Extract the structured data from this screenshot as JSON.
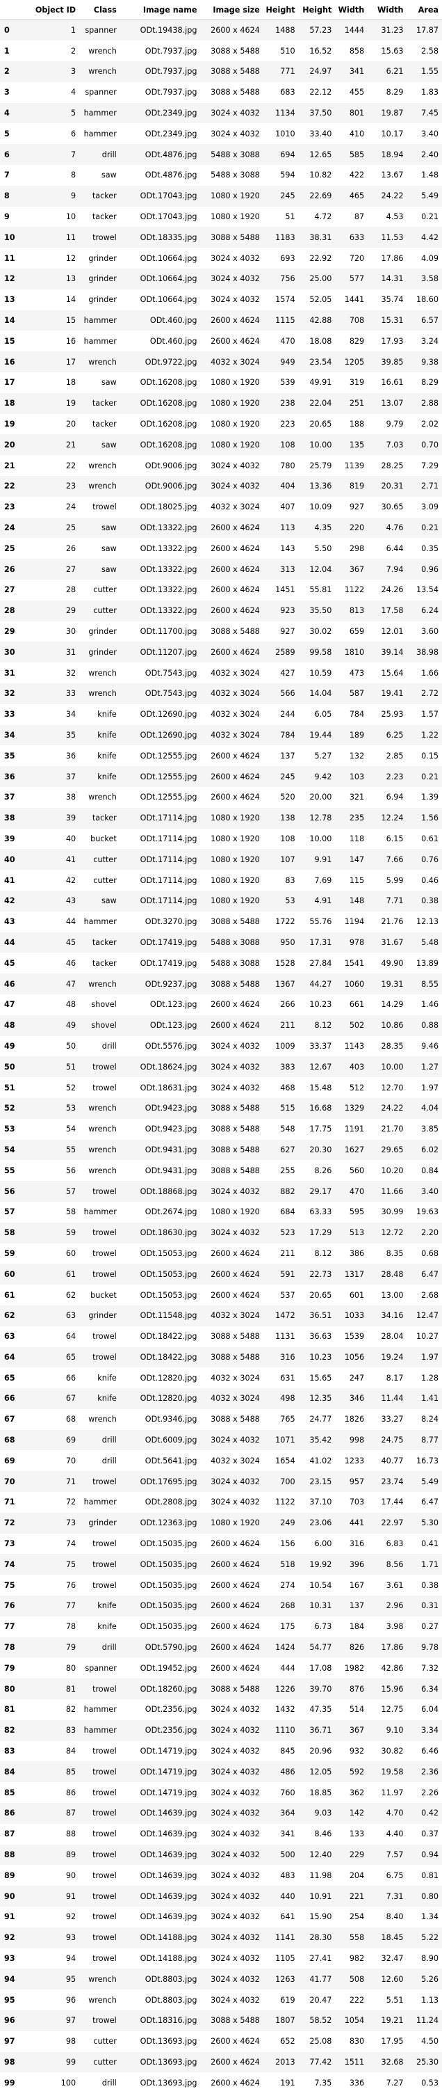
{
  "table": {
    "headers": [
      "",
      "Object ID",
      "Class",
      "Image name",
      "Image size",
      "Height",
      "Height",
      "Width",
      "Width",
      "Area"
    ],
    "rows": [
      [
        "0",
        "1",
        "spanner",
        "ODt.19438.jpg",
        "2600 x 4624",
        "1488",
        "57.23",
        "1444",
        "31.23",
        "17.87"
      ],
      [
        "1",
        "2",
        "wrench",
        "ODt.7937.jpg",
        "3088 x 5488",
        "510",
        "16.52",
        "858",
        "15.63",
        "2.58"
      ],
      [
        "2",
        "3",
        "wrench",
        "ODt.7937.jpg",
        "3088 x 5488",
        "771",
        "24.97",
        "341",
        "6.21",
        "1.55"
      ],
      [
        "3",
        "4",
        "spanner",
        "ODt.7937.jpg",
        "3088 x 5488",
        "683",
        "22.12",
        "455",
        "8.29",
        "1.83"
      ],
      [
        "4",
        "5",
        "hammer",
        "ODt.2349.jpg",
        "3024 x 4032",
        "1134",
        "37.50",
        "801",
        "19.87",
        "7.45"
      ],
      [
        "5",
        "6",
        "hammer",
        "ODt.2349.jpg",
        "3024 x 4032",
        "1010",
        "33.40",
        "410",
        "10.17",
        "3.40"
      ],
      [
        "6",
        "7",
        "drill",
        "ODt.4876.jpg",
        "5488 x 3088",
        "694",
        "12.65",
        "585",
        "18.94",
        "2.40"
      ],
      [
        "7",
        "8",
        "saw",
        "ODt.4876.jpg",
        "5488 x 3088",
        "594",
        "10.82",
        "422",
        "13.67",
        "1.48"
      ],
      [
        "8",
        "9",
        "tacker",
        "ODt.17043.jpg",
        "1080 x 1920",
        "245",
        "22.69",
        "465",
        "24.22",
        "5.49"
      ],
      [
        "9",
        "10",
        "tacker",
        "ODt.17043.jpg",
        "1080 x 1920",
        "51",
        "4.72",
        "87",
        "4.53",
        "0.21"
      ],
      [
        "10",
        "11",
        "trowel",
        "ODt.18335.jpg",
        "3088 x 5488",
        "1183",
        "38.31",
        "633",
        "11.53",
        "4.42"
      ],
      [
        "11",
        "12",
        "grinder",
        "ODt.10664.jpg",
        "3024 x 4032",
        "693",
        "22.92",
        "720",
        "17.86",
        "4.09"
      ],
      [
        "12",
        "13",
        "grinder",
        "ODt.10664.jpg",
        "3024 x 4032",
        "756",
        "25.00",
        "577",
        "14.31",
        "3.58"
      ],
      [
        "13",
        "14",
        "grinder",
        "ODt.10664.jpg",
        "3024 x 4032",
        "1574",
        "52.05",
        "1441",
        "35.74",
        "18.60"
      ],
      [
        "14",
        "15",
        "hammer",
        "ODt.460.jpg",
        "2600 x 4624",
        "1115",
        "42.88",
        "708",
        "15.31",
        "6.57"
      ],
      [
        "15",
        "16",
        "hammer",
        "ODt.460.jpg",
        "2600 x 4624",
        "470",
        "18.08",
        "829",
        "17.93",
        "3.24"
      ],
      [
        "16",
        "17",
        "wrench",
        "ODt.9722.jpg",
        "4032 x 3024",
        "949",
        "23.54",
        "1205",
        "39.85",
        "9.38"
      ],
      [
        "17",
        "18",
        "saw",
        "ODt.16208.jpg",
        "1080 x 1920",
        "539",
        "49.91",
        "319",
        "16.61",
        "8.29"
      ],
      [
        "18",
        "19",
        "tacker",
        "ODt.16208.jpg",
        "1080 x 1920",
        "238",
        "22.04",
        "251",
        "13.07",
        "2.88"
      ],
      [
        "19",
        "20",
        "tacker",
        "ODt.16208.jpg",
        "1080 x 1920",
        "223",
        "20.65",
        "188",
        "9.79",
        "2.02"
      ],
      [
        "20",
        "21",
        "saw",
        "ODt.16208.jpg",
        "1080 x 1920",
        "108",
        "10.00",
        "135",
        "7.03",
        "0.70"
      ],
      [
        "21",
        "22",
        "wrench",
        "ODt.9006.jpg",
        "3024 x 4032",
        "780",
        "25.79",
        "1139",
        "28.25",
        "7.29"
      ],
      [
        "22",
        "23",
        "wrench",
        "ODt.9006.jpg",
        "3024 x 4032",
        "404",
        "13.36",
        "819",
        "20.31",
        "2.71"
      ],
      [
        "23",
        "24",
        "trowel",
        "ODt.18025.jpg",
        "4032 x 3024",
        "407",
        "10.09",
        "927",
        "30.65",
        "3.09"
      ],
      [
        "24",
        "25",
        "saw",
        "ODt.13322.jpg",
        "2600 x 4624",
        "113",
        "4.35",
        "220",
        "4.76",
        "0.21"
      ],
      [
        "25",
        "26",
        "saw",
        "ODt.13322.jpg",
        "2600 x 4624",
        "143",
        "5.50",
        "298",
        "6.44",
        "0.35"
      ],
      [
        "26",
        "27",
        "saw",
        "ODt.13322.jpg",
        "2600 x 4624",
        "313",
        "12.04",
        "367",
        "7.94",
        "0.96"
      ],
      [
        "27",
        "28",
        "cutter",
        "ODt.13322.jpg",
        "2600 x 4624",
        "1451",
        "55.81",
        "1122",
        "24.26",
        "13.54"
      ],
      [
        "28",
        "29",
        "cutter",
        "ODt.13322.jpg",
        "2600 x 4624",
        "923",
        "35.50",
        "813",
        "17.58",
        "6.24"
      ],
      [
        "29",
        "30",
        "grinder",
        "ODt.11700.jpg",
        "3088 x 5488",
        "927",
        "30.02",
        "659",
        "12.01",
        "3.60"
      ],
      [
        "30",
        "31",
        "grinder",
        "ODt.11207.jpg",
        "2600 x 4624",
        "2589",
        "99.58",
        "1810",
        "39.14",
        "38.98"
      ],
      [
        "31",
        "32",
        "wrench",
        "ODt.7543.jpg",
        "4032 x 3024",
        "427",
        "10.59",
        "473",
        "15.64",
        "1.66"
      ],
      [
        "32",
        "33",
        "wrench",
        "ODt.7543.jpg",
        "4032 x 3024",
        "566",
        "14.04",
        "587",
        "19.41",
        "2.72"
      ],
      [
        "33",
        "34",
        "knife",
        "ODt.12690.jpg",
        "4032 x 3024",
        "244",
        "6.05",
        "784",
        "25.93",
        "1.57"
      ],
      [
        "34",
        "35",
        "knife",
        "ODt.12690.jpg",
        "4032 x 3024",
        "784",
        "19.44",
        "189",
        "6.25",
        "1.22"
      ],
      [
        "35",
        "36",
        "knife",
        "ODt.12555.jpg",
        "2600 x 4624",
        "137",
        "5.27",
        "132",
        "2.85",
        "0.15"
      ],
      [
        "36",
        "37",
        "knife",
        "ODt.12555.jpg",
        "2600 x 4624",
        "245",
        "9.42",
        "103",
        "2.23",
        "0.21"
      ],
      [
        "37",
        "38",
        "wrench",
        "ODt.12555.jpg",
        "2600 x 4624",
        "520",
        "20.00",
        "321",
        "6.94",
        "1.39"
      ],
      [
        "38",
        "39",
        "tacker",
        "ODt.17114.jpg",
        "1080 x 1920",
        "138",
        "12.78",
        "235",
        "12.24",
        "1.56"
      ],
      [
        "39",
        "40",
        "bucket",
        "ODt.17114.jpg",
        "1080 x 1920",
        "108",
        "10.00",
        "118",
        "6.15",
        "0.61"
      ],
      [
        "40",
        "41",
        "cutter",
        "ODt.17114.jpg",
        "1080 x 1920",
        "107",
        "9.91",
        "147",
        "7.66",
        "0.76"
      ],
      [
        "41",
        "42",
        "cutter",
        "ODt.17114.jpg",
        "1080 x 1920",
        "83",
        "7.69",
        "115",
        "5.99",
        "0.46"
      ],
      [
        "42",
        "43",
        "saw",
        "ODt.17114.jpg",
        "1080 x 1920",
        "53",
        "4.91",
        "148",
        "7.71",
        "0.38"
      ],
      [
        "43",
        "44",
        "hammer",
        "ODt.3270.jpg",
        "3088 x 5488",
        "1722",
        "55.76",
        "1194",
        "21.76",
        "12.13"
      ],
      [
        "44",
        "45",
        "tacker",
        "ODt.17419.jpg",
        "5488 x 3088",
        "950",
        "17.31",
        "978",
        "31.67",
        "5.48"
      ],
      [
        "45",
        "46",
        "tacker",
        "ODt.17419.jpg",
        "5488 x 3088",
        "1528",
        "27.84",
        "1541",
        "49.90",
        "13.89"
      ],
      [
        "46",
        "47",
        "wrench",
        "ODt.9237.jpg",
        "3088 x 5488",
        "1367",
        "44.27",
        "1060",
        "19.31",
        "8.55"
      ],
      [
        "47",
        "48",
        "shovel",
        "ODt.123.jpg",
        "2600 x 4624",
        "266",
        "10.23",
        "661",
        "14.29",
        "1.46"
      ],
      [
        "48",
        "49",
        "shovel",
        "ODt.123.jpg",
        "2600 x 4624",
        "211",
        "8.12",
        "502",
        "10.86",
        "0.88"
      ],
      [
        "49",
        "50",
        "drill",
        "ODt.5576.jpg",
        "3024 x 4032",
        "1009",
        "33.37",
        "1143",
        "28.35",
        "9.46"
      ],
      [
        "50",
        "51",
        "trowel",
        "ODt.18624.jpg",
        "3024 x 4032",
        "383",
        "12.67",
        "403",
        "10.00",
        "1.27"
      ],
      [
        "51",
        "52",
        "trowel",
        "ODt.18631.jpg",
        "3024 x 4032",
        "468",
        "15.48",
        "512",
        "12.70",
        "1.97"
      ],
      [
        "52",
        "53",
        "wrench",
        "ODt.9423.jpg",
        "3088 x 5488",
        "515",
        "16.68",
        "1329",
        "24.22",
        "4.04"
      ],
      [
        "53",
        "54",
        "wrench",
        "ODt.9423.jpg",
        "3088 x 5488",
        "548",
        "17.75",
        "1191",
        "21.70",
        "3.85"
      ],
      [
        "54",
        "55",
        "wrench",
        "ODt.9431.jpg",
        "3088 x 5488",
        "627",
        "20.30",
        "1627",
        "29.65",
        "6.02"
      ],
      [
        "55",
        "56",
        "wrench",
        "ODt.9431.jpg",
        "3088 x 5488",
        "255",
        "8.26",
        "560",
        "10.20",
        "0.84"
      ],
      [
        "56",
        "57",
        "trowel",
        "ODt.18868.jpg",
        "3024 x 4032",
        "882",
        "29.17",
        "470",
        "11.66",
        "3.40"
      ],
      [
        "57",
        "58",
        "hammer",
        "ODt.2674.jpg",
        "1080 x 1920",
        "684",
        "63.33",
        "595",
        "30.99",
        "19.63"
      ],
      [
        "58",
        "59",
        "trowel",
        "ODt.18630.jpg",
        "3024 x 4032",
        "523",
        "17.29",
        "513",
        "12.72",
        "2.20"
      ],
      [
        "59",
        "60",
        "trowel",
        "ODt.15053.jpg",
        "2600 x 4624",
        "211",
        "8.12",
        "386",
        "8.35",
        "0.68"
      ],
      [
        "60",
        "61",
        "trowel",
        "ODt.15053.jpg",
        "2600 x 4624",
        "591",
        "22.73",
        "1317",
        "28.48",
        "6.47"
      ],
      [
        "61",
        "62",
        "bucket",
        "ODt.15053.jpg",
        "2600 x 4624",
        "537",
        "20.65",
        "601",
        "13.00",
        "2.68"
      ],
      [
        "62",
        "63",
        "grinder",
        "ODt.11548.jpg",
        "4032 x 3024",
        "1472",
        "36.51",
        "1033",
        "34.16",
        "12.47"
      ],
      [
        "63",
        "64",
        "trowel",
        "ODt.18422.jpg",
        "3088 x 5488",
        "1131",
        "36.63",
        "1539",
        "28.04",
        "10.27"
      ],
      [
        "64",
        "65",
        "trowel",
        "ODt.18422.jpg",
        "3088 x 5488",
        "316",
        "10.23",
        "1056",
        "19.24",
        "1.97"
      ],
      [
        "65",
        "66",
        "knife",
        "ODt.12820.jpg",
        "4032 x 3024",
        "631",
        "15.65",
        "247",
        "8.17",
        "1.28"
      ],
      [
        "66",
        "67",
        "knife",
        "ODt.12820.jpg",
        "4032 x 3024",
        "498",
        "12.35",
        "346",
        "11.44",
        "1.41"
      ],
      [
        "67",
        "68",
        "wrench",
        "ODt.9346.jpg",
        "3088 x 5488",
        "765",
        "24.77",
        "1826",
        "33.27",
        "8.24"
      ],
      [
        "68",
        "69",
        "drill",
        "ODt.6009.jpg",
        "3024 x 4032",
        "1071",
        "35.42",
        "998",
        "24.75",
        "8.77"
      ],
      [
        "69",
        "70",
        "drill",
        "ODt.5641.jpg",
        "4032 x 3024",
        "1654",
        "41.02",
        "1233",
        "40.77",
        "16.73"
      ],
      [
        "70",
        "71",
        "trowel",
        "ODt.17695.jpg",
        "3024 x 4032",
        "700",
        "23.15",
        "957",
        "23.74",
        "5.49"
      ],
      [
        "71",
        "72",
        "hammer",
        "ODt.2808.jpg",
        "3024 x 4032",
        "1122",
        "37.10",
        "703",
        "17.44",
        "6.47"
      ],
      [
        "72",
        "73",
        "grinder",
        "ODt.12363.jpg",
        "1080 x 1920",
        "249",
        "23.06",
        "441",
        "22.97",
        "5.30"
      ],
      [
        "73",
        "74",
        "trowel",
        "ODt.15035.jpg",
        "2600 x 4624",
        "156",
        "6.00",
        "316",
        "6.83",
        "0.41"
      ],
      [
        "74",
        "75",
        "trowel",
        "ODt.15035.jpg",
        "2600 x 4624",
        "518",
        "19.92",
        "396",
        "8.56",
        "1.71"
      ],
      [
        "75",
        "76",
        "trowel",
        "ODt.15035.jpg",
        "2600 x 4624",
        "274",
        "10.54",
        "167",
        "3.61",
        "0.38"
      ],
      [
        "76",
        "77",
        "knife",
        "ODt.15035.jpg",
        "2600 x 4624",
        "268",
        "10.31",
        "137",
        "2.96",
        "0.31"
      ],
      [
        "77",
        "78",
        "knife",
        "ODt.15035.jpg",
        "2600 x 4624",
        "175",
        "6.73",
        "184",
        "3.98",
        "0.27"
      ],
      [
        "78",
        "79",
        "drill",
        "ODt.5790.jpg",
        "2600 x 4624",
        "1424",
        "54.77",
        "826",
        "17.86",
        "9.78"
      ],
      [
        "79",
        "80",
        "spanner",
        "ODt.19452.jpg",
        "2600 x 4624",
        "444",
        "17.08",
        "1982",
        "42.86",
        "7.32"
      ],
      [
        "80",
        "81",
        "trowel",
        "ODt.18260.jpg",
        "3088 x 5488",
        "1226",
        "39.70",
        "876",
        "15.96",
        "6.34"
      ],
      [
        "81",
        "82",
        "hammer",
        "ODt.2356.jpg",
        "3024 x 4032",
        "1432",
        "47.35",
        "514",
        "12.75",
        "6.04"
      ],
      [
        "82",
        "83",
        "hammer",
        "ODt.2356.jpg",
        "3024 x 4032",
        "1110",
        "36.71",
        "367",
        "9.10",
        "3.34"
      ],
      [
        "83",
        "84",
        "trowel",
        "ODt.14719.jpg",
        "3024 x 4032",
        "845",
        "20.96",
        "932",
        "30.82",
        "6.46"
      ],
      [
        "84",
        "85",
        "trowel",
        "ODt.14719.jpg",
        "3024 x 4032",
        "486",
        "12.05",
        "592",
        "19.58",
        "2.36"
      ],
      [
        "85",
        "86",
        "trowel",
        "ODt.14719.jpg",
        "3024 x 4032",
        "760",
        "18.85",
        "362",
        "11.97",
        "2.26"
      ],
      [
        "86",
        "87",
        "trowel",
        "ODt.14639.jpg",
        "3024 x 4032",
        "364",
        "9.03",
        "142",
        "4.70",
        "0.42"
      ],
      [
        "87",
        "88",
        "trowel",
        "ODt.14639.jpg",
        "3024 x 4032",
        "341",
        "8.46",
        "133",
        "4.40",
        "0.37"
      ],
      [
        "88",
        "89",
        "trowel",
        "ODt.14639.jpg",
        "3024 x 4032",
        "500",
        "12.40",
        "229",
        "7.57",
        "0.94"
      ],
      [
        "89",
        "90",
        "trowel",
        "ODt.14639.jpg",
        "3024 x 4032",
        "483",
        "11.98",
        "204",
        "6.75",
        "0.81"
      ],
      [
        "90",
        "91",
        "trowel",
        "ODt.14639.jpg",
        "3024 x 4032",
        "440",
        "10.91",
        "221",
        "7.31",
        "0.80"
      ],
      [
        "91",
        "92",
        "trowel",
        "ODt.14639.jpg",
        "3024 x 4032",
        "641",
        "15.90",
        "254",
        "8.40",
        "1.34"
      ],
      [
        "92",
        "93",
        "trowel",
        "ODt.14188.jpg",
        "3024 x 4032",
        "1141",
        "28.30",
        "558",
        "18.45",
        "5.22"
      ],
      [
        "93",
        "94",
        "trowel",
        "ODt.14188.jpg",
        "3024 x 4032",
        "1105",
        "27.41",
        "982",
        "32.47",
        "8.90"
      ],
      [
        "94",
        "95",
        "wrench",
        "ODt.8803.jpg",
        "3024 x 4032",
        "1263",
        "41.77",
        "508",
        "12.60",
        "5.26"
      ],
      [
        "95",
        "96",
        "wrench",
        "ODt.8803.jpg",
        "3024 x 4032",
        "619",
        "20.47",
        "222",
        "5.51",
        "1.13"
      ],
      [
        "96",
        "97",
        "trowel",
        "ODt.18316.jpg",
        "3088 x 5488",
        "1807",
        "58.52",
        "1054",
        "19.21",
        "11.24"
      ],
      [
        "97",
        "98",
        "cutter",
        "ODt.13693.jpg",
        "2600 x 4624",
        "652",
        "25.08",
        "830",
        "17.95",
        "4.50"
      ],
      [
        "98",
        "99",
        "cutter",
        "ODt.13693.jpg",
        "2600 x 4624",
        "2013",
        "77.42",
        "1511",
        "32.68",
        "25.30"
      ],
      [
        "99",
        "100",
        "drill",
        "ODt.13693.jpg",
        "2600 x 4624",
        "191",
        "7.35",
        "336",
        "7.27",
        "0.53"
      ]
    ]
  }
}
